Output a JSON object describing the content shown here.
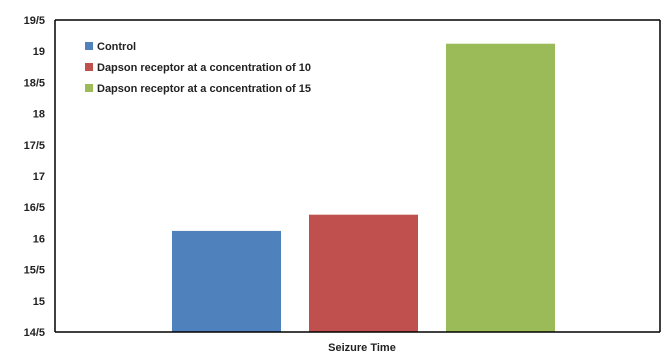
{
  "chart_data": {
    "type": "bar",
    "categories": [
      "Seizure Time"
    ],
    "xlabel": "Seizure Time",
    "ylabel": "",
    "ylim": [
      14.5,
      19.5
    ],
    "y_ticks": [
      14.5,
      15,
      15.5,
      16,
      16.5,
      17,
      17.5,
      18,
      18.5,
      19,
      19.5
    ],
    "y_tick_labels": [
      "14/5",
      "15",
      "15/5",
      "16",
      "16/5",
      "17",
      "17/5",
      "18",
      "18/5",
      "19",
      "19/5"
    ],
    "grid": false,
    "legend_position": "top-left",
    "series": [
      {
        "name": "Control",
        "values": [
          16.12
        ],
        "color": "#4f81bd"
      },
      {
        "name": "Dapson receptor at a concentration of 10",
        "values": [
          16.38
        ],
        "color": "#c0504d"
      },
      {
        "name": "Dapson receptor at a concentration of 15",
        "values": [
          19.12
        ],
        "color": "#9bbb59"
      }
    ]
  }
}
